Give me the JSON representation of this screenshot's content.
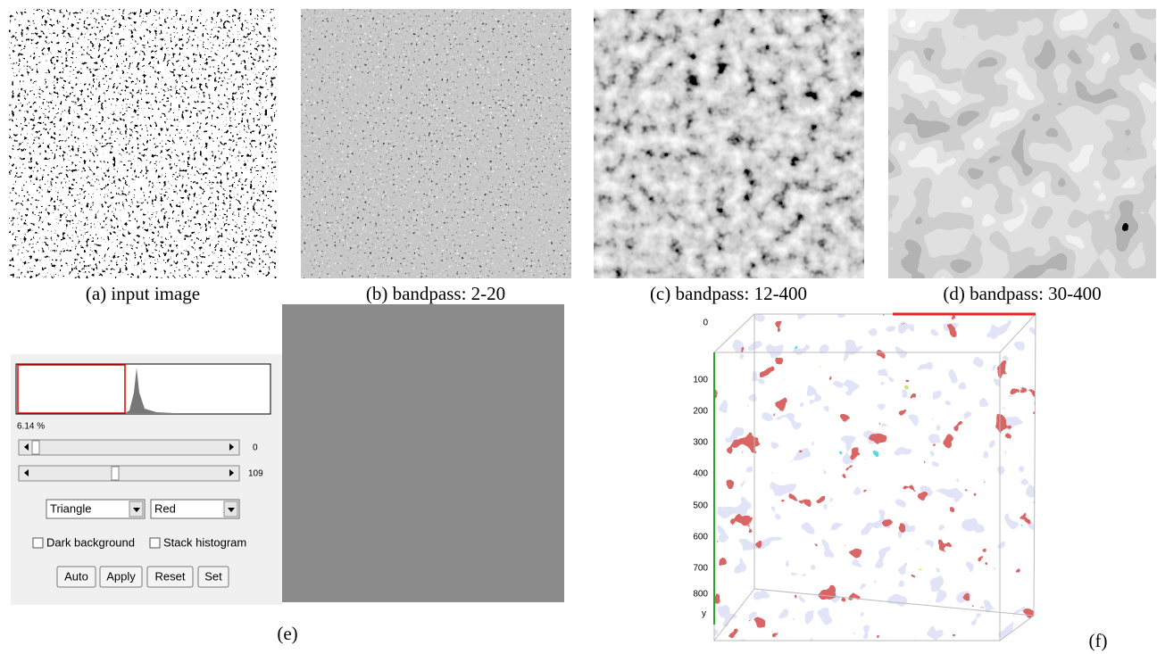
{
  "panels": [
    {
      "caption": "(a) input image"
    },
    {
      "caption": "(b) bandpass: 2-20"
    },
    {
      "caption": "(c) bandpass: 12-400"
    },
    {
      "caption": "(d) bandpass: 30-400"
    }
  ],
  "threshold_dialog": {
    "percent": "6.14 %",
    "slider_min": 0,
    "slider_max": 109,
    "method": "Triangle",
    "display": "Red",
    "options": [
      "Dark background",
      "Stack histogram"
    ],
    "buttons": [
      "Auto",
      "Apply",
      "Reset",
      "Set"
    ]
  },
  "panel_e_label": "(e)",
  "volume_axis": {
    "ticks": [
      0,
      100,
      200,
      300,
      400,
      500,
      600,
      700,
      800
    ],
    "label": "y"
  },
  "panel_f_label": "(f)"
}
